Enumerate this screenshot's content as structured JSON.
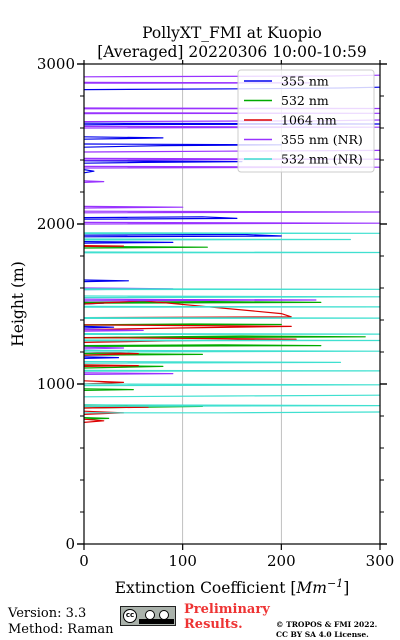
{
  "chart_data": {
    "type": "line",
    "title_line1": "PollyXT_FMI at Kuopio",
    "title_line2": "[Averaged] 20220306 10:00-10:59",
    "xlabel_text": "Extinction Coefficient [",
    "xlabel_unit": "Mm",
    "xlabel_exp": "−1",
    "xlabel_close": "]",
    "ylabel": "Height (m)",
    "xlim": [
      0,
      300
    ],
    "ylim": [
      0,
      3000
    ],
    "xticks": [
      0,
      100,
      200,
      300
    ],
    "yticks": [
      0,
      1000,
      2000,
      3000
    ],
    "grid": "vertical only",
    "legend_position": "top-right",
    "series": [
      {
        "name": "355 nm",
        "color": "#0000ee",
        "segments": [
          [
            [
              0,
              2320
            ],
            [
              10,
              2330
            ],
            [
              0,
              2340
            ]
          ],
          [
            [
              0,
              2380
            ],
            [
              60,
              2385
            ],
            [
              160,
              2390
            ],
            [
              0,
              2395
            ]
          ],
          [
            [
              0,
              2480
            ],
            [
              80,
              2490
            ],
            [
              200,
              2495
            ],
            [
              0,
              2500
            ]
          ],
          [
            [
              0,
              2530
            ],
            [
              80,
              2538
            ],
            [
              0,
              2545
            ]
          ],
          [
            [
              0,
              2620
            ],
            [
              40,
              2622
            ],
            [
              300,
              2625
            ],
            [
              0,
              2630
            ]
          ],
          [
            [
              0,
              2840
            ],
            [
              160,
              2845
            ],
            [
              260,
              2850
            ],
            [
              300,
              2855
            ]
          ],
          [
            [
              0,
              2040
            ],
            [
              120,
              2045
            ],
            [
              155,
              2035
            ],
            [
              0,
              2030
            ]
          ],
          [
            [
              0,
              1930
            ],
            [
              160,
              1935
            ],
            [
              200,
              1925
            ],
            [
              0,
              1920
            ]
          ],
          [
            [
              0,
              1880
            ],
            [
              90,
              1885
            ],
            [
              0,
              1890
            ]
          ],
          [
            [
              0,
              1640
            ],
            [
              45,
              1645
            ],
            [
              0,
              1650
            ]
          ],
          [
            [
              0,
              1510
            ],
            [
              20,
              1505
            ],
            [
              0,
              1500
            ]
          ],
          [
            [
              0,
              1360
            ],
            [
              30,
              1355
            ],
            [
              0,
              1350
            ]
          ],
          [
            [
              0,
              1160
            ],
            [
              35,
              1165
            ],
            [
              0,
              1170
            ]
          ]
        ]
      },
      {
        "name": "532 nm",
        "color": "#00aa00",
        "segments": [
          [
            [
              0,
              1850
            ],
            [
              60,
              1852
            ],
            [
              125,
              1855
            ],
            [
              0,
              1860
            ]
          ],
          [
            [
              0,
              1510
            ],
            [
              130,
              1515
            ],
            [
              240,
              1510
            ],
            [
              0,
              1505
            ]
          ],
          [
            [
              0,
              1370
            ],
            [
              110,
              1375
            ],
            [
              200,
              1372
            ],
            [
              0,
              1368
            ]
          ],
          [
            [
              0,
              1290
            ],
            [
              160,
              1300
            ],
            [
              285,
              1295
            ],
            [
              0,
              1288
            ]
          ],
          [
            [
              0,
              1240
            ],
            [
              140,
              1245
            ],
            [
              240,
              1240
            ],
            [
              0,
              1235
            ]
          ],
          [
            [
              0,
              1180
            ],
            [
              120,
              1185
            ],
            [
              0,
              1190
            ]
          ],
          [
            [
              0,
              1100
            ],
            [
              80,
              1110
            ],
            [
              0,
              1115
            ]
          ],
          [
            [
              0,
              960
            ],
            [
              50,
              965
            ],
            [
              0,
              970
            ]
          ],
          [
            [
              0,
              870
            ],
            [
              120,
              860
            ],
            [
              0,
              850
            ]
          ],
          [
            [
              0,
              790
            ],
            [
              25,
              785
            ],
            [
              0,
              780
            ]
          ]
        ]
      },
      {
        "name": "1064 nm",
        "color": "#dd0000",
        "segments": [
          [
            [
              0,
              1860
            ],
            [
              40,
              1862
            ],
            [
              0,
              1865
            ]
          ],
          [
            [
              0,
              1500
            ],
            [
              60,
              1520
            ],
            [
              200,
              1440
            ],
            [
              210,
              1420
            ],
            [
              0,
              1415
            ]
          ],
          [
            [
              0,
              1340
            ],
            [
              95,
              1350
            ],
            [
              210,
              1360
            ],
            [
              0,
              1370
            ]
          ],
          [
            [
              0,
              1260
            ],
            [
              90,
              1270
            ],
            [
              215,
              1280
            ],
            [
              0,
              1290
            ]
          ],
          [
            [
              0,
              1180
            ],
            [
              55,
              1190
            ],
            [
              0,
              1200
            ]
          ],
          [
            [
              0,
              1110
            ],
            [
              55,
              1115
            ],
            [
              0,
              1120
            ]
          ],
          [
            [
              0,
              1000
            ],
            [
              40,
              1010
            ],
            [
              0,
              1020
            ]
          ],
          [
            [
              0,
              850
            ],
            [
              65,
              855
            ],
            [
              0,
              860
            ]
          ],
          [
            [
              0,
              810
            ],
            [
              40,
              820
            ],
            [
              0,
              830
            ]
          ],
          [
            [
              0,
              760
            ],
            [
              20,
              770
            ],
            [
              0,
              780
            ]
          ]
        ]
      },
      {
        "name": "355 nm (NR)",
        "color": "#9933ff",
        "segments": [
          [
            [
              0,
              2920
            ],
            [
              250,
              2925
            ],
            [
              300,
              2930
            ]
          ],
          [
            [
              0,
              2880
            ],
            [
              230,
              2882
            ],
            [
              0,
              2885
            ]
          ],
          [
            [
              0,
              2720
            ],
            [
              300,
              2722
            ],
            [
              0,
              2725
            ]
          ],
          [
            [
              0,
              2690
            ],
            [
              300,
              2692
            ],
            [
              0,
              2695
            ]
          ],
          [
            [
              0,
              2640
            ],
            [
              240,
              2645
            ],
            [
              300,
              2650
            ]
          ],
          [
            [
              0,
              2600
            ],
            [
              300,
              2605
            ],
            [
              0,
              2610
            ]
          ],
          [
            [
              0,
              2450
            ],
            [
              140,
              2455
            ],
            [
              300,
              2460
            ]
          ],
          [
            [
              0,
              2400
            ],
            [
              300,
              2405
            ],
            [
              0,
              2410
            ]
          ],
          [
            [
              0,
              2350
            ],
            [
              300,
              2355
            ],
            [
              0,
              2360
            ]
          ],
          [
            [
              0,
              2260
            ],
            [
              20,
              2265
            ],
            [
              0,
              2270
            ]
          ],
          [
            [
              0,
              2100
            ],
            [
              100,
              2105
            ],
            [
              0,
              2110
            ]
          ],
          [
            [
              0,
              2070
            ],
            [
              300,
              2075
            ],
            [
              0,
              2080
            ]
          ],
          [
            [
              0,
              2000
            ],
            [
              300,
              2005
            ],
            [
              0,
              2010
            ]
          ],
          [
            [
              0,
              1590
            ],
            [
              90,
              1595
            ],
            [
              0,
              1600
            ]
          ],
          [
            [
              0,
              1520
            ],
            [
              235,
              1525
            ],
            [
              0,
              1530
            ]
          ],
          [
            [
              0,
              1330
            ],
            [
              60,
              1335
            ],
            [
              0,
              1340
            ]
          ],
          [
            [
              0,
              1220
            ],
            [
              40,
              1225
            ],
            [
              0,
              1230
            ]
          ],
          [
            [
              0,
              1060
            ],
            [
              90,
              1065
            ],
            [
              0,
              1070
            ]
          ]
        ]
      },
      {
        "name": "532 nm (NR)",
        "color": "#40e0d0",
        "segments": [
          [
            [
              0,
              1940
            ],
            [
              300,
              1942
            ],
            [
              0,
              1945
            ]
          ],
          [
            [
              0,
              1900
            ],
            [
              270,
              1903
            ],
            [
              0,
              1906
            ]
          ],
          [
            [
              0,
              1820
            ],
            [
              300,
              1822
            ],
            [
              0,
              1825
            ]
          ],
          [
            [
              0,
              1590
            ],
            [
              300,
              1592
            ],
            [
              0,
              1595
            ]
          ],
          [
            [
              0,
              1540
            ],
            [
              300,
              1545
            ],
            [
              0,
              1550
            ]
          ],
          [
            [
              0,
              1480
            ],
            [
              300,
              1482
            ],
            [
              0,
              1485
            ]
          ],
          [
            [
              0,
              1410
            ],
            [
              300,
              1412
            ],
            [
              0,
              1415
            ]
          ],
          [
            [
              0,
              1310
            ],
            [
              300,
              1312
            ],
            [
              0,
              1315
            ]
          ],
          [
            [
              0,
              1270
            ],
            [
              300,
              1272
            ],
            [
              0,
              1275
            ]
          ],
          [
            [
              0,
              1200
            ],
            [
              300,
              1205
            ],
            [
              0,
              1210
            ]
          ],
          [
            [
              0,
              1130
            ],
            [
              260,
              1135
            ],
            [
              0,
              1140
            ]
          ],
          [
            [
              0,
              1080
            ],
            [
              300,
              1082
            ],
            [
              0,
              1085
            ]
          ],
          [
            [
              0,
              990
            ],
            [
              300,
              995
            ],
            [
              0,
              1000
            ]
          ],
          [
            [
              0,
              920
            ],
            [
              140,
              925
            ],
            [
              300,
              930
            ]
          ],
          [
            [
              0,
              860
            ],
            [
              300,
              865
            ],
            [
              0,
              870
            ]
          ],
          [
            [
              0,
              820
            ],
            [
              140,
              820
            ],
            [
              300,
              825
            ]
          ]
        ]
      }
    ]
  },
  "footer": {
    "version": "Version: 3.3",
    "method": "Method: Raman",
    "prelim_line1": "Preliminary",
    "prelim_line2": "Results.",
    "copyright_line1": "© TROPOS & FMI 2022.",
    "copyright_line2": "CC BY SA 4.0 License.",
    "cc_symbol": "cc",
    "badge_icon": "cc-by-sa-icon"
  }
}
